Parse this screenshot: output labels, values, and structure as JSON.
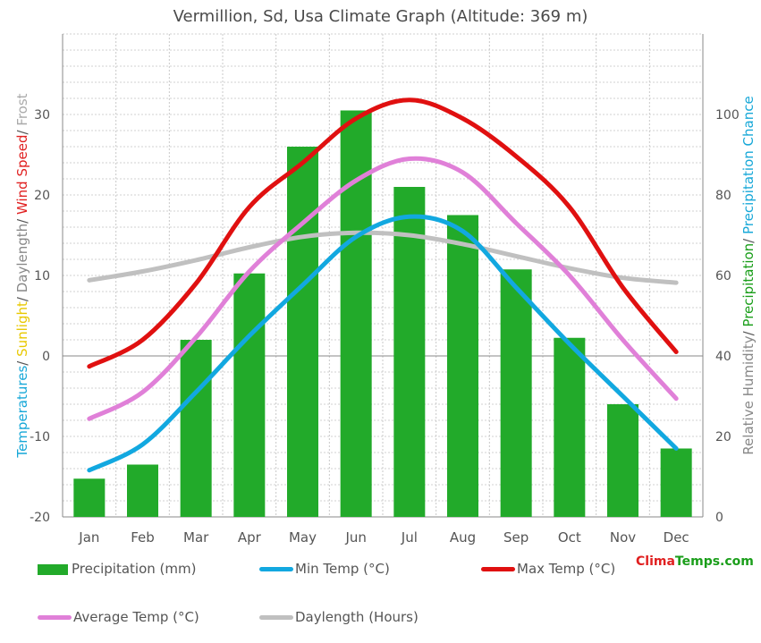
{
  "title": "Vermillion, Sd, Usa Climate Graph (Altitude: 369 m)",
  "brand": {
    "part1": "Clima",
    "part2": "Temps.com"
  },
  "left_axis_label": [
    {
      "text": "Temperatures",
      "color": "#18a8d8"
    },
    {
      "text": "/ ",
      "color": "#555555"
    },
    {
      "text": "Sunlight",
      "color": "#e8c800"
    },
    {
      "text": "/ ",
      "color": "#555555"
    },
    {
      "text": "Daylength",
      "color": "#888888"
    },
    {
      "text": "/ ",
      "color": "#555555"
    },
    {
      "text": "Wind Speed",
      "color": "#e02020"
    },
    {
      "text": "/ ",
      "color": "#555555"
    },
    {
      "text": "Frost",
      "color": "#aaaaaa"
    }
  ],
  "right_axis_label": [
    {
      "text": "Relative Humidity",
      "color": "#888888"
    },
    {
      "text": "/ ",
      "color": "#555555"
    },
    {
      "text": "Precipitation",
      "color": "#1a9e1a"
    },
    {
      "text": "/ ",
      "color": "#555555"
    },
    {
      "text": "Precipitation Chance",
      "color": "#18a8d8"
    }
  ],
  "chart_data": {
    "type": "bar",
    "categories": [
      "Jan",
      "Feb",
      "Mar",
      "Apr",
      "May",
      "Jun",
      "Jul",
      "Aug",
      "Sep",
      "Oct",
      "Nov",
      "Dec"
    ],
    "left_axis": {
      "ylim": [
        -20,
        40
      ],
      "ticks": [
        -20,
        -10,
        0,
        10,
        20,
        30
      ]
    },
    "right_axis": {
      "ylim": [
        0,
        120
      ],
      "ticks": [
        0,
        20,
        40,
        60,
        80,
        100
      ]
    },
    "grid": true,
    "bars": {
      "name": "Precipitation (mm)",
      "color": "#22aa2a",
      "axis": "right",
      "values": [
        9.5,
        13,
        44,
        60.5,
        92,
        101,
        82,
        75,
        61.5,
        44.5,
        28,
        17
      ]
    },
    "series": [
      {
        "name": "Min Temp (°C)",
        "color": "#12a8e0",
        "axis": "left",
        "values": [
          -14.2,
          -11,
          -4.5,
          2.5,
          8.8,
          14.8,
          17.3,
          15.5,
          8.5,
          1.5,
          -5,
          -11.5
        ]
      },
      {
        "name": "Max Temp (°C)",
        "color": "#e01010",
        "axis": "left",
        "values": [
          -1.3,
          2,
          9,
          18.5,
          24,
          29.5,
          31.8,
          29.5,
          24.8,
          18.5,
          8.5,
          0.5
        ]
      },
      {
        "name": "Average Temp (°C)",
        "color": "#e080d8",
        "axis": "left",
        "values": [
          -7.8,
          -4.5,
          2.3,
          10.5,
          16.5,
          21.8,
          24.5,
          22.8,
          16.5,
          10,
          2,
          -5.3
        ]
      },
      {
        "name": "Daylength (Hours)",
        "color": "#c0c0c0",
        "axis": "left",
        "values": [
          9.4,
          10.5,
          11.9,
          13.5,
          14.8,
          15.3,
          15,
          13.9,
          12.4,
          10.9,
          9.7,
          9.1
        ]
      }
    ],
    "legend_position": "bottom"
  }
}
